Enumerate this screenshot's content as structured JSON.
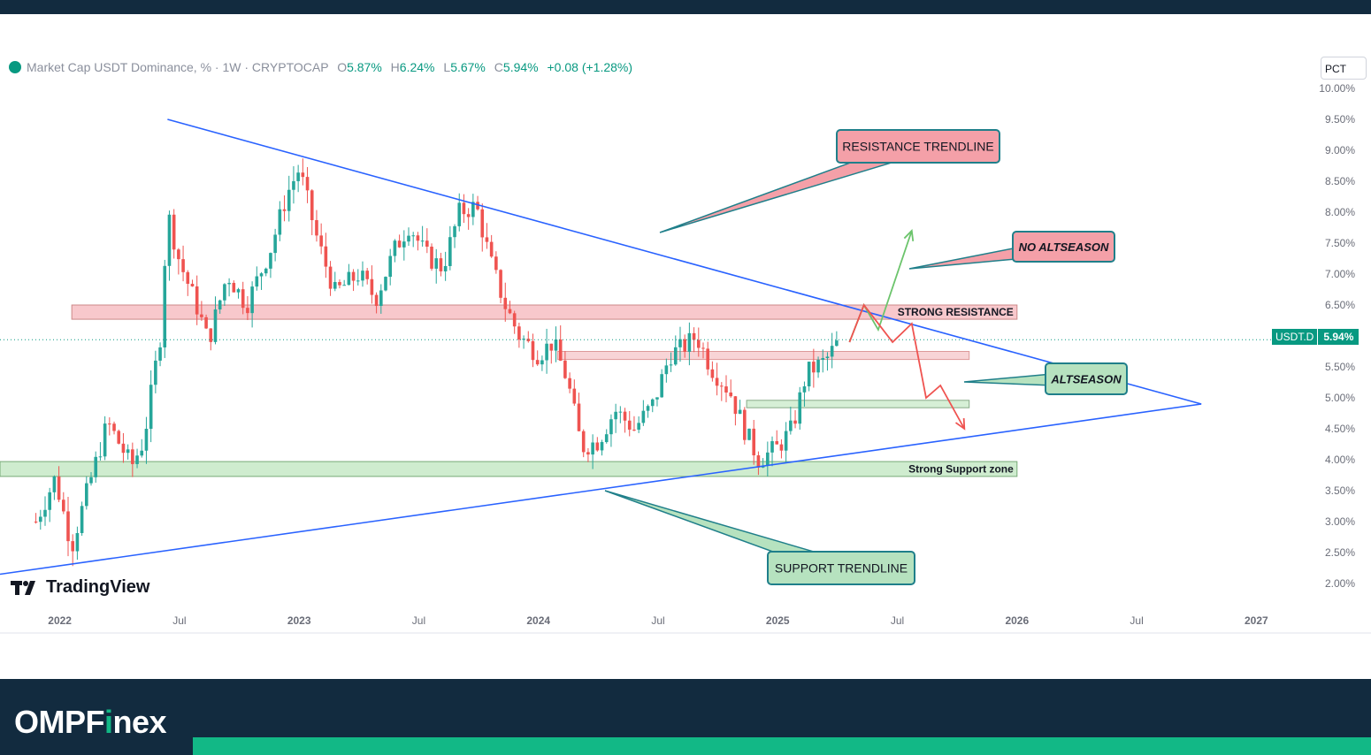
{
  "brand": {
    "name_pre": "OMPF",
    "name_i": "i",
    "name_post": "nex"
  },
  "legend": {
    "title": "Market Cap USDT Dominance, % · 1W · CRYPTOCAP",
    "o_label": "O",
    "o": "5.87%",
    "h_label": "H",
    "h": "6.24%",
    "l_label": "L",
    "l": "5.67%",
    "c_label": "C",
    "c": "5.94%",
    "change": "+0.08 (+1.28%)"
  },
  "scale_mode": "PCT",
  "price_tag": {
    "symbol": "USDT.D",
    "value": "5.94%"
  },
  "tradingview_label": "TradingView",
  "colors": {
    "up": "#26a69a",
    "down": "#ef5350",
    "trendline": "#2962ff",
    "accent": "#12b886",
    "footer": "#122b3f"
  },
  "chart_data": {
    "type": "candlestick",
    "title": "Market Cap USDT Dominance, % · 1W · CRYPTOCAP",
    "ylim": [
      1.9,
      10.0
    ],
    "y_ticks": [
      "10.00%",
      "9.50%",
      "9.00%",
      "8.50%",
      "8.00%",
      "7.50%",
      "7.00%",
      "6.50%",
      "6.00%",
      "5.50%",
      "5.00%",
      "4.50%",
      "4.00%",
      "3.50%",
      "3.00%",
      "2.50%",
      "2.00%"
    ],
    "x_ticks": [
      "2022",
      "Jul",
      "2023",
      "Jul",
      "2024",
      "Jul",
      "2025",
      "Jul",
      "2026",
      "Jul",
      "2027"
    ],
    "current_price": 5.94,
    "close_path": [
      [
        2021.9,
        3.0
      ],
      [
        2021.98,
        3.7
      ],
      [
        2022.05,
        2.6
      ],
      [
        2022.1,
        3.3
      ],
      [
        2022.2,
        4.6
      ],
      [
        2022.3,
        3.9
      ],
      [
        2022.35,
        4.3
      ],
      [
        2022.42,
        6.0
      ],
      [
        2022.45,
        8.0
      ],
      [
        2022.5,
        7.2
      ],
      [
        2022.58,
        6.4
      ],
      [
        2022.62,
        5.9
      ],
      [
        2022.7,
        7.0
      ],
      [
        2022.78,
        6.5
      ],
      [
        2022.88,
        7.4
      ],
      [
        2022.95,
        8.3
      ],
      [
        2023.0,
        8.7
      ],
      [
        2023.08,
        7.5
      ],
      [
        2023.15,
        6.7
      ],
      [
        2023.25,
        7.0
      ],
      [
        2023.32,
        6.6
      ],
      [
        2023.4,
        7.4
      ],
      [
        2023.46,
        7.8
      ],
      [
        2023.53,
        7.3
      ],
      [
        2023.6,
        7.1
      ],
      [
        2023.67,
        8.0
      ],
      [
        2023.74,
        8.1
      ],
      [
        2023.8,
        7.2
      ],
      [
        2023.86,
        6.5
      ],
      [
        2023.92,
        6.0
      ],
      [
        2024.0,
        5.7
      ],
      [
        2024.06,
        5.9
      ],
      [
        2024.12,
        5.3
      ],
      [
        2024.18,
        4.2
      ],
      [
        2024.25,
        4.3
      ],
      [
        2024.32,
        4.8
      ],
      [
        2024.4,
        4.5
      ],
      [
        2024.48,
        4.9
      ],
      [
        2024.55,
        5.7
      ],
      [
        2024.6,
        5.8
      ],
      [
        2024.66,
        6.0
      ],
      [
        2024.72,
        5.5
      ],
      [
        2024.8,
        5.1
      ],
      [
        2024.86,
        4.5
      ],
      [
        2024.92,
        4.0
      ],
      [
        2025.0,
        4.2
      ],
      [
        2025.06,
        4.5
      ],
      [
        2025.12,
        5.4
      ],
      [
        2025.2,
        5.6
      ],
      [
        2025.26,
        5.94
      ]
    ],
    "annotations": [
      {
        "text": "RESISTANCE TRENDLINE",
        "kind": "callout-red"
      },
      {
        "text": "NO ALTSEASON",
        "kind": "callout-red"
      },
      {
        "text": "STRONG RESISTANCE",
        "kind": "zone-red"
      },
      {
        "text": "ALTSEASON",
        "kind": "callout-green"
      },
      {
        "text": "Strong Support zone",
        "kind": "zone-green"
      },
      {
        "text": "SUPPORT TRENDLINE",
        "kind": "callout-green"
      }
    ],
    "zones": [
      {
        "name": "STRONG RESISTANCE",
        "from": 6.27,
        "to": 6.5,
        "start": 2022.05,
        "end": 2026.0
      },
      {
        "name": "resistance-minor",
        "from": 5.62,
        "to": 5.75,
        "start": 2024.08,
        "end": 2025.8
      },
      {
        "name": "support-minor",
        "from": 4.84,
        "to": 4.96,
        "start": 2024.87,
        "end": 2025.8
      },
      {
        "name": "Strong Support zone",
        "from": 3.73,
        "to": 3.97,
        "start": 2021.75,
        "end": 2026.0
      }
    ],
    "trendlines": [
      {
        "name": "resistance",
        "from": [
          2022.45,
          9.5
        ],
        "to": [
          2026.77,
          4.9
        ]
      },
      {
        "name": "support",
        "from": [
          2021.75,
          2.15
        ],
        "to": [
          2026.77,
          4.9
        ]
      }
    ],
    "scenarios": [
      {
        "name": "no-altseason-up",
        "points": [
          [
            2025.3,
            5.9
          ],
          [
            2025.36,
            6.5
          ],
          [
            2025.42,
            6.1
          ],
          [
            2025.56,
            7.7
          ]
        ]
      },
      {
        "name": "altseason-down",
        "points": [
          [
            2025.3,
            5.9
          ],
          [
            2025.36,
            6.5
          ],
          [
            2025.48,
            5.9
          ],
          [
            2025.56,
            6.2
          ],
          [
            2025.62,
            5.0
          ],
          [
            2025.68,
            5.2
          ],
          [
            2025.78,
            4.5
          ]
        ]
      }
    ]
  }
}
